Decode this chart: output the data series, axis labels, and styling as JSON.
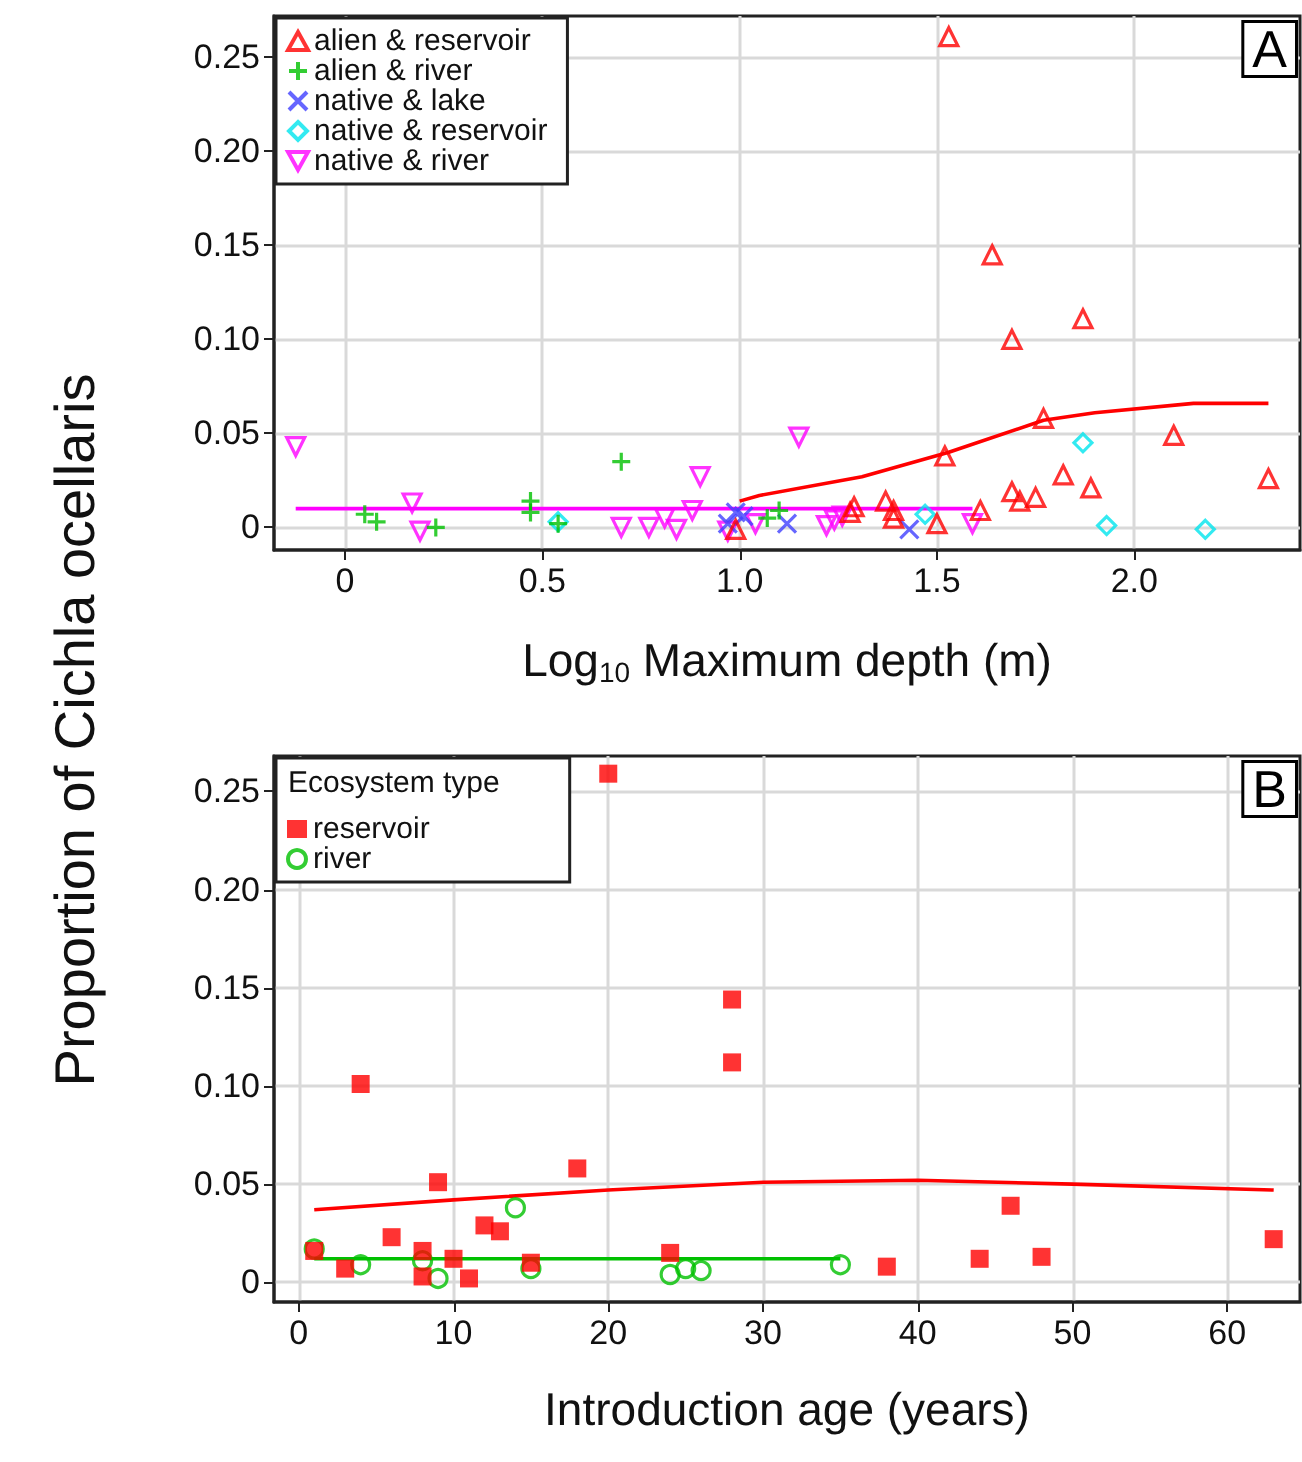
{
  "chart_data": [
    {
      "type": "scatter",
      "xlabel": "Log$_{10}$ Maximum depth (m)",
      "ylabel": "Proportion of Cichla ocellaris",
      "annotations": [
        "A"
      ],
      "xlim": [
        -0.18,
        2.42
      ],
      "ylim": [
        -0.012,
        0.272
      ],
      "xticks": [
        {
          "value": 0,
          "label": "0"
        },
        {
          "value": 0.5,
          "label": "0.5"
        },
        {
          "value": 1,
          "label": "1.0"
        },
        {
          "value": 1.5,
          "label": "1.5"
        },
        {
          "value": 2,
          "label": "2.0"
        }
      ],
      "yticks": [
        {
          "value": 0,
          "label": "0"
        },
        {
          "value": 0.05,
          "label": "0.05"
        },
        {
          "value": 0.1,
          "label": "0.10"
        },
        {
          "value": 0.15,
          "label": "0.15"
        },
        {
          "value": 0.2,
          "label": "0.20"
        },
        {
          "value": 0.25,
          "label": "0.25"
        }
      ],
      "grid": true,
      "legend": "top left",
      "series": [
        {
          "name": "alien & reservoir",
          "color": "#ff0000",
          "marker": "triangle",
          "x": [
            0.99,
            1.28,
            1.29,
            1.37,
            1.39,
            1.39,
            1.5,
            1.52,
            1.53,
            1.61,
            1.64,
            1.69,
            1.69,
            1.71,
            1.75,
            1.77,
            1.82,
            1.87,
            1.89,
            2.1,
            2.34
          ],
          "values": [
            -0.001,
            0.008,
            0.011,
            0.014,
            0.009,
            0.005,
            0.002,
            0.038,
            0.261,
            0.009,
            0.145,
            0.1,
            0.019,
            0.014,
            0.016,
            0.058,
            0.028,
            0.111,
            0.021,
            0.049,
            0.026
          ]
        },
        {
          "name": "alien & river",
          "color": "#00c000",
          "marker": "cross",
          "x": [
            0.05,
            0.08,
            0.23,
            0.47,
            0.47,
            0.54,
            0.7,
            1.07,
            1.1
          ],
          "values": [
            0.007,
            0.003,
            0.0,
            0.014,
            0.008,
            0.002,
            0.035,
            0.005,
            0.009
          ]
        },
        {
          "name": "native & lake",
          "color": "#4040ff",
          "marker": "x",
          "x": [
            0.97,
            0.99,
            1.01,
            1.12,
            1.43
          ],
          "values": [
            0.002,
            0.008,
            0.006,
            0.002,
            -0.001
          ]
        },
        {
          "name": "native & reservoir",
          "color": "#00e5ee",
          "marker": "diamond",
          "x": [
            0.54,
            1.47,
            1.87,
            1.93,
            2.18
          ],
          "values": [
            0.003,
            0.007,
            0.045,
            0.001,
            -0.001
          ]
        },
        {
          "name": "native & river",
          "color": "#ff00ff",
          "marker": "triangle-down",
          "x": [
            -0.125,
            0.17,
            0.19,
            0.7,
            0.77,
            0.81,
            0.84,
            0.88,
            0.9,
            0.97,
            1.04,
            1.15,
            1.22,
            1.24,
            1.26,
            1.59
          ],
          "values": [
            0.043,
            0.013,
            -0.002,
            0.0,
            0.0,
            0.005,
            -0.001,
            0.009,
            0.027,
            -0.002,
            0.002,
            0.048,
            0.001,
            0.004,
            0.006,
            0.002
          ]
        },
        {
          "type": "line",
          "color": "#ff0000",
          "marker": "none",
          "x": [
            1.0,
            1.05,
            1.31,
            1.53,
            1.77,
            1.9,
            2.15,
            2.34
          ],
          "values": [
            0.014,
            0.017,
            0.027,
            0.04,
            0.057,
            0.061,
            0.066,
            0.066
          ]
        },
        {
          "type": "line",
          "color": "#ff00ff",
          "marker": "none",
          "x": [
            -0.125,
            1.59
          ],
          "values": [
            0.01,
            0.01
          ]
        }
      ]
    },
    {
      "type": "scatter",
      "xlabel": "Introduction age (years)",
      "legend_title": "Ecosystem type",
      "annotations": [
        "B"
      ],
      "xlim": [
        -1.6,
        64.7
      ],
      "ylim": [
        -0.01,
        0.268
      ],
      "xticks": [
        {
          "value": 0,
          "label": "0"
        },
        {
          "value": 10,
          "label": "10"
        },
        {
          "value": 20,
          "label": "20"
        },
        {
          "value": 30,
          "label": "30"
        },
        {
          "value": 40,
          "label": "40"
        },
        {
          "value": 50,
          "label": "50"
        },
        {
          "value": 60,
          "label": "60"
        }
      ],
      "yticks": [
        {
          "value": 0,
          "label": "0"
        },
        {
          "value": 0.05,
          "label": "0.05"
        },
        {
          "value": 0.1,
          "label": "0.10"
        },
        {
          "value": 0.15,
          "label": "0.15"
        },
        {
          "value": 0.2,
          "label": "0.20"
        },
        {
          "value": 0.25,
          "label": "0.25"
        }
      ],
      "grid": true,
      "legend": "top left",
      "series": [
        {
          "name": "reservoir",
          "color": "#ff0000",
          "marker": "square",
          "x": [
            1,
            3,
            4,
            6,
            8,
            8,
            9,
            10,
            11,
            12,
            13,
            15,
            18,
            20,
            24,
            28,
            28,
            38,
            44,
            46,
            48,
            63
          ],
          "values": [
            0.016,
            0.007,
            0.101,
            0.023,
            0.016,
            0.003,
            0.051,
            0.012,
            0.002,
            0.029,
            0.026,
            0.01,
            0.058,
            0.259,
            0.015,
            0.144,
            0.112,
            0.008,
            0.012,
            0.039,
            0.013,
            0.022
          ]
        },
        {
          "name": "river",
          "color": "#00c000",
          "marker": "circle",
          "x": [
            1,
            4,
            8,
            9,
            14,
            15,
            24,
            25,
            26,
            35
          ],
          "values": [
            0.017,
            0.009,
            0.011,
            0.002,
            0.038,
            0.007,
            0.004,
            0.007,
            0.006,
            0.009
          ]
        },
        {
          "type": "line",
          "color": "#ff0000",
          "marker": "none",
          "x": [
            1,
            10,
            20,
            30,
            40,
            50,
            63
          ],
          "values": [
            0.037,
            0.042,
            0.047,
            0.051,
            0.052,
            0.05,
            0.047
          ]
        },
        {
          "type": "line",
          "color": "#00c000",
          "marker": "none",
          "x": [
            1,
            35
          ],
          "values": [
            0.012,
            0.012
          ]
        }
      ]
    }
  ]
}
